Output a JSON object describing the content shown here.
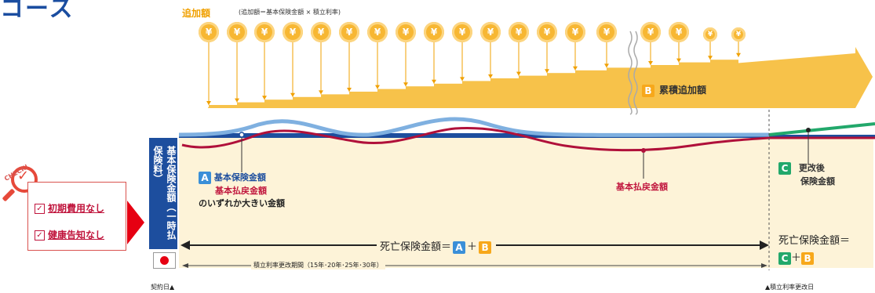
{
  "header": {
    "title_fragment": "コース"
  },
  "top": {
    "label": "追加額",
    "formula": "(追加額＝基本保険金額 × 積立利率)"
  },
  "coins": {
    "symbol": "¥",
    "count_large": 17,
    "count_small": 2
  },
  "card_b": {
    "badge": "B",
    "label": "累積追加額"
  },
  "left_bar": {
    "label": "基本保険金額（一時払保険料）"
  },
  "label_a": {
    "badge": "A",
    "line1": "基本保険金額",
    "line2": "基本払戻金額",
    "line3": "のいずれか大きい金額"
  },
  "label_refund": "基本払戻金額",
  "label_c": {
    "badge": "C",
    "line1": "更改後",
    "line2": "保険金額"
  },
  "death_benefit": {
    "text": "死亡保険金額＝",
    "badge_a": "A",
    "plus": "＋",
    "badge_b": "B"
  },
  "death_benefit_after": {
    "text": "死亡保険金額＝",
    "badge_c": "C",
    "plus": "＋",
    "badge_b": "B"
  },
  "period": "積立利率更改期間（15年･20年･25年･30年）",
  "contract_day": "契約日▲",
  "renewal_day": "▲積立利率更改日",
  "check": {
    "badge": "CHECK!",
    "items": [
      "初期費用なし",
      "健康告知なし"
    ]
  },
  "colors": {
    "orange": "#f7c24a",
    "blue": "#1d4e9e",
    "red": "#b0103a",
    "green": "#22a86b",
    "cream": "#fdf3d8"
  }
}
